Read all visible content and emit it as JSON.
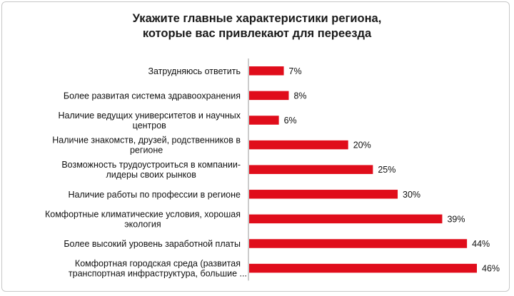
{
  "chart_data": {
    "type": "bar",
    "orientation": "horizontal",
    "title": [
      "Укажите главные характеристики региона,",
      "которые вас привлекают для переезда"
    ],
    "categories": [
      [
        "Затрудняюсь ответить"
      ],
      [
        "Более развитая система здравоохранения"
      ],
      [
        "Наличие ведущих университетов и научных",
        "центров"
      ],
      [
        "Наличие знакомств, друзей, родственников в",
        "регионе"
      ],
      [
        "Возможность трудоустроиться в компании-",
        "лидеры своих рынков"
      ],
      [
        "Наличие работы по профессии в регионе"
      ],
      [
        "Комфортные климатические условия, хорошая",
        "экология"
      ],
      [
        "Более высокий уровень заработной платы"
      ],
      [
        "Комфортная городская среда (развитая",
        "транспортная инфраструктура, большие ..."
      ]
    ],
    "values": [
      7,
      8,
      6,
      20,
      25,
      30,
      39,
      44,
      46
    ],
    "value_labels": [
      "7%",
      "8%",
      "6%",
      "20%",
      "25%",
      "30%",
      "39%",
      "44%",
      "46%"
    ],
    "unit": "%",
    "xlim": [
      0,
      46
    ],
    "grid": false,
    "legend": "none",
    "bar_color": "#e00d1b",
    "axis_color": "#9a9a9a"
  }
}
